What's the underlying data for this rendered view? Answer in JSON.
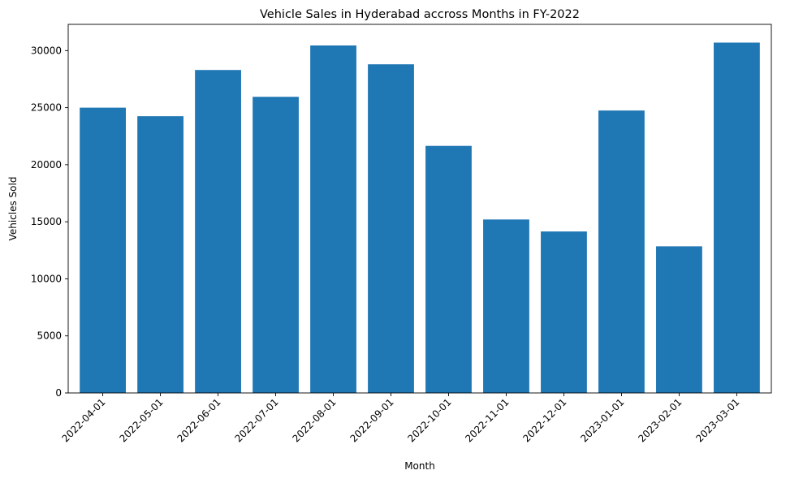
{
  "chart_data": {
    "type": "bar",
    "title": "Vehicle Sales in Hyderabad accross Months in FY-2022",
    "xlabel": "Month",
    "ylabel": "Vehicles Sold",
    "categories": [
      "2022-04-01",
      "2022-05-01",
      "2022-06-01",
      "2022-07-01",
      "2022-08-01",
      "2022-09-01",
      "2022-10-01",
      "2022-11-01",
      "2022-12-01",
      "2023-01-01",
      "2023-02-01",
      "2023-03-01"
    ],
    "values": [
      25000,
      24250,
      28300,
      25950,
      30450,
      28800,
      21650,
      15200,
      14150,
      24750,
      12850,
      30700
    ],
    "ylim": [
      0,
      32300
    ],
    "yticks": [
      0,
      5000,
      10000,
      15000,
      20000,
      25000,
      30000
    ],
    "bar_color": "#1f77b4",
    "grid": false,
    "legend": "none"
  }
}
